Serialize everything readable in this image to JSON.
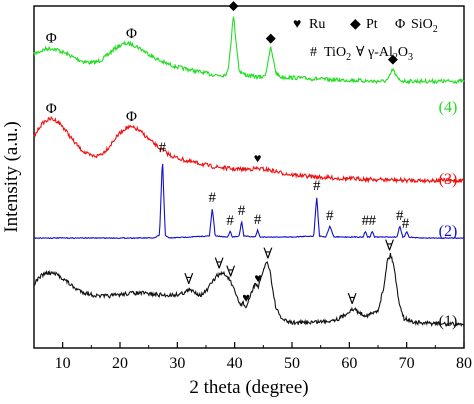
{
  "chart_data": {
    "type": "line",
    "title": "",
    "xlabel": "2 theta (degree)",
    "ylabel": "Intensity (a.u.)",
    "xlim": [
      5,
      80
    ],
    "x_ticks": [
      10,
      20,
      30,
      40,
      50,
      60,
      70,
      80
    ],
    "y_ticks_shown": false,
    "grid": false,
    "legend": {
      "placement": "top-right",
      "line1": [
        {
          "symbol": "♥",
          "text": "Ru"
        },
        {
          "symbol": "◆",
          "text": "Pt"
        },
        {
          "symbol": "Φ",
          "text": "SiO",
          "sub": "2"
        }
      ],
      "line2": [
        {
          "symbol": "#",
          "text": "TiO",
          "sub": "2"
        },
        {
          "symbol": "∀",
          "parts": [
            {
              "t": "γ-Al",
              "sub": false
            },
            {
              "t": "2",
              "sub": true
            },
            {
              "t": "O",
              "sub": false
            },
            {
              "t": "3",
              "sub": true
            }
          ]
        }
      ]
    },
    "series": [
      {
        "name": "(4)",
        "color": "#22dd22",
        "x": [
          5,
          6,
          7,
          8,
          9,
          10,
          11,
          12,
          13,
          14,
          15,
          16,
          17,
          18,
          19,
          20,
          21,
          22,
          23,
          24,
          25,
          26,
          27,
          28,
          29,
          30,
          31,
          32,
          33,
          34,
          35,
          36,
          37,
          38,
          38.8,
          39.3,
          39.8,
          40.3,
          40.8,
          41.5,
          42,
          43,
          44,
          45,
          45.5,
          45.9,
          46.3,
          46.7,
          47.2,
          48,
          50,
          52,
          54,
          56,
          58,
          60,
          62,
          64,
          66,
          66.8,
          67.3,
          67.6,
          67.9,
          68.4,
          69,
          70,
          72,
          74,
          76,
          78,
          80
        ],
        "y": [
          100,
          104,
          108,
          109,
          107,
          103,
          99,
          94,
          90,
          87,
          86,
          87,
          92,
          100,
          108,
          114,
          117,
          116,
          112,
          106,
          100,
          94,
          89,
          85,
          82,
          79,
          77,
          75,
          73,
          71,
          69,
          67,
          66,
          66,
          70,
          115,
          162,
          115,
          73,
          68,
          66,
          64,
          63,
          63,
          71,
          94,
          110,
          92,
          70,
          63,
          62,
          61,
          60,
          59,
          58,
          58,
          57,
          56,
          56,
          59,
          70,
          76,
          70,
          60,
          57,
          56,
          56,
          56,
          56,
          56,
          56
        ]
      },
      {
        "name": "(3)",
        "color": "#ee1111",
        "x": [
          5,
          6,
          7,
          8,
          9,
          10,
          11,
          12,
          13,
          14,
          15,
          16,
          17,
          18,
          19,
          20,
          21,
          22,
          23,
          24,
          25,
          26,
          27,
          28,
          29,
          30,
          32,
          34,
          36,
          38,
          40,
          42,
          44,
          46,
          48,
          50,
          54,
          58,
          62,
          66,
          70,
          75,
          80
        ],
        "y": [
          90,
          105,
          113,
          116,
          113,
          105,
          94,
          83,
          74,
          67,
          63,
          63,
          67,
          75,
          86,
          96,
          103,
          104,
          101,
          95,
          87,
          80,
          73,
          68,
          63,
          60,
          55,
          52,
          48,
          46,
          44,
          44,
          45,
          43,
          39,
          36,
          33,
          31,
          30,
          29,
          28,
          28,
          28
        ]
      },
      {
        "name": "(2)",
        "color": "#1111cc",
        "x": [
          5,
          10,
          20,
          26,
          26.9,
          27.4,
          27.9,
          28.5,
          35.6,
          36.1,
          36.6,
          38.8,
          39.2,
          39.6,
          40.8,
          41.2,
          41.6,
          43.6,
          44.0,
          44.4,
          50,
          53.8,
          54.3,
          54.8,
          55.9,
          56.6,
          57.3,
          62.4,
          62.8,
          63.2,
          63.6,
          64.0,
          64.4,
          68.3,
          68.8,
          69.3,
          69.6,
          70.0,
          70.4,
          72,
          80
        ],
        "y": [
          0,
          0,
          0,
          0,
          3,
          80,
          3,
          0,
          2,
          30,
          2,
          1,
          7,
          1,
          2,
          17,
          2,
          1,
          8,
          1,
          1,
          2,
          42,
          2,
          1,
          12,
          1,
          1,
          7,
          1,
          1,
          7,
          1,
          1,
          12,
          1,
          1,
          7,
          1,
          0,
          0
        ]
      },
      {
        "name": "(1)",
        "color": "#111111",
        "x": [
          5,
          6,
          7,
          8,
          9,
          10,
          11,
          12,
          14,
          16,
          18,
          20,
          22,
          24,
          26,
          28,
          30,
          31,
          32,
          33,
          34,
          35,
          36,
          37,
          38,
          39,
          40,
          41,
          41.5,
          42,
          43,
          43.6,
          44.1,
          44.6,
          45.1,
          45.6,
          46.1,
          46.6,
          47.2,
          48,
          49,
          50,
          52,
          54,
          56,
          58,
          59,
          60,
          61,
          62,
          63,
          64,
          65,
          66,
          66.6,
          67.2,
          67.8,
          68.5,
          69.5,
          71,
          73,
          75,
          77,
          79,
          80
        ],
        "y": [
          70,
          80,
          85,
          85,
          83,
          78,
          72,
          65,
          58,
          54,
          54,
          56,
          58,
          58,
          56,
          55,
          56,
          58,
          62,
          60,
          55,
          60,
          72,
          82,
          85,
          78,
          60,
          42,
          45,
          38,
          60,
          72,
          64,
          78,
          92,
          100,
          92,
          64,
          38,
          25,
          20,
          18,
          18,
          19,
          20,
          23,
          27,
          34,
          36,
          30,
          28,
          30,
          35,
          65,
          102,
          110,
          95,
          52,
          24,
          19,
          17,
          17,
          16,
          16,
          16
        ]
      }
    ],
    "series_labels": [
      "(4)",
      "(3)",
      "(2)",
      "(1)"
    ],
    "annotations": [
      {
        "symbol": "◆",
        "x": 39.8,
        "curve": "(4)"
      },
      {
        "symbol": "◆",
        "x": 46.3,
        "curve": "(4)"
      },
      {
        "symbol": "◆",
        "x": 67.6,
        "curve": "(4)"
      },
      {
        "symbol": "Φ",
        "x": 8,
        "curve": "(4)"
      },
      {
        "symbol": "Φ",
        "x": 22,
        "curve": "(4)"
      },
      {
        "symbol": "Φ",
        "x": 8,
        "curve": "(3)"
      },
      {
        "symbol": "Φ",
        "x": 22,
        "curve": "(3)"
      },
      {
        "symbol": "♥",
        "x": 44,
        "curve": "(3)"
      },
      {
        "symbol": "#",
        "x": 27.4,
        "curve": "(2)"
      },
      {
        "symbol": "#",
        "x": 36.1,
        "curve": "(2)"
      },
      {
        "symbol": "#",
        "x": 39.2,
        "curve": "(2)"
      },
      {
        "symbol": "#",
        "x": 41.2,
        "curve": "(2)"
      },
      {
        "symbol": "#",
        "x": 44.0,
        "curve": "(2)"
      },
      {
        "symbol": "#",
        "x": 54.3,
        "curve": "(2)"
      },
      {
        "symbol": "#",
        "x": 56.6,
        "curve": "(2)"
      },
      {
        "symbol": "#",
        "x": 62.8,
        "curve": "(2)"
      },
      {
        "symbol": "#",
        "x": 64.0,
        "curve": "(2)"
      },
      {
        "symbol": "#",
        "x": 68.8,
        "curve": "(2)"
      },
      {
        "symbol": "#",
        "x": 69.8,
        "curve": "(2)"
      },
      {
        "symbol": "∀",
        "x": 32,
        "curve": "(1)"
      },
      {
        "symbol": "∀",
        "x": 37.3,
        "curve": "(1)"
      },
      {
        "symbol": "∀",
        "x": 39.3,
        "curve": "(1)"
      },
      {
        "symbol": "♥",
        "x": 42,
        "curve": "(1)"
      },
      {
        "symbol": "♥",
        "x": 44.1,
        "curve": "(1)"
      },
      {
        "symbol": "∀",
        "x": 45.8,
        "curve": "(1)"
      },
      {
        "symbol": "∀",
        "x": 60.5,
        "curve": "(1)"
      },
      {
        "symbol": "∀",
        "x": 67.0,
        "curve": "(1)"
      }
    ]
  }
}
